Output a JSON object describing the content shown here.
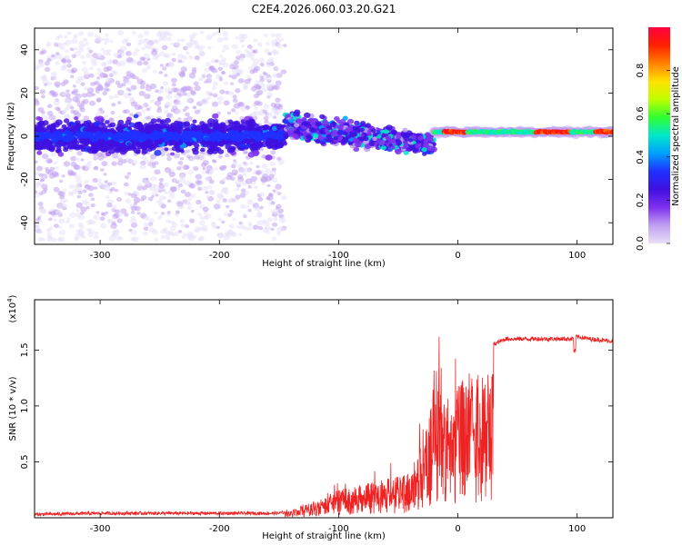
{
  "title": "C2E4.2026.060.03.20.G21",
  "chart_data": [
    {
      "type": "heatmap",
      "xlabel": "Height of straight line (km)",
      "ylabel": "Frequency (Hz)",
      "xlim": [
        -355,
        130
      ],
      "ylim": [
        -50,
        50
      ],
      "xticks": [
        -300,
        -200,
        -100,
        0,
        100
      ],
      "yticks": [
        -40,
        -20,
        0,
        20,
        40
      ],
      "colorbar": {
        "label": "Normalized spectral amplitude",
        "range": [
          0,
          1
        ],
        "ticks": [
          "0.0",
          "0.2",
          "0.4",
          "0.6",
          "0.8"
        ],
        "tick_values": [
          0.0,
          0.2,
          0.4,
          0.6,
          0.8
        ],
        "colors": [
          "#e8e0f8",
          "#c0a0f0",
          "#8030f0",
          "#4010e0",
          "#2030ff",
          "#00a0ff",
          "#00e8c8",
          "#30ff30",
          "#c0ff00",
          "#ffe000",
          "#ff8000",
          "#ff2000",
          "#ff0040"
        ]
      },
      "bands": [
        {
          "segment": "scattered, broad",
          "x_range": [
            -355,
            -145
          ],
          "center_hz": 0,
          "core_halfwidth_hz": 8,
          "scatter_halfwidth_hz": 48
        },
        {
          "segment": "narrowing, mid amplitude",
          "x_range": [
            -145,
            -20
          ],
          "center_hz": [
            5,
            -4
          ],
          "core_halfwidth_hz": [
            7,
            5
          ]
        },
        {
          "segment": "narrow, high amplitude",
          "x_range": [
            -20,
            130
          ],
          "center_hz": 2,
          "core_halfwidth_hz": 1.5
        }
      ]
    },
    {
      "type": "line",
      "xlabel": "Height of straight line (km)",
      "ylabel": "SNR (10 * v/v)",
      "y_multiplier": "(x10",
      "y_exponent": "4",
      "y_multiplier_close": ")",
      "xlim": [
        -355,
        130
      ],
      "ylim": [
        0,
        1.95
      ],
      "xticks": [
        -300,
        -200,
        -100,
        0,
        100
      ],
      "yticks": [
        0.5,
        1,
        1.5
      ],
      "ytick_labels": [
        "0.5",
        "1.0",
        "1.5"
      ],
      "series": [
        {
          "name": "SNR",
          "color": "#ee2222",
          "x": [
            -355,
            -300,
            -250,
            -200,
            -150,
            -140,
            -120,
            -100,
            -80,
            -60,
            -40,
            -30,
            -25,
            -20,
            -15,
            -10,
            -5,
            0,
            10,
            20,
            30,
            40,
            60,
            80,
            95,
            100,
            110,
            130
          ],
          "y": [
            0.03,
            0.04,
            0.04,
            0.04,
            0.04,
            0.06,
            0.15,
            0.25,
            0.3,
            0.35,
            0.4,
            0.7,
            0.9,
            1.1,
            1.5,
            1.2,
            0.9,
            1.2,
            1.3,
            1.4,
            1.55,
            1.6,
            1.6,
            1.6,
            1.6,
            1.62,
            1.6,
            1.58
          ]
        }
      ]
    }
  ]
}
